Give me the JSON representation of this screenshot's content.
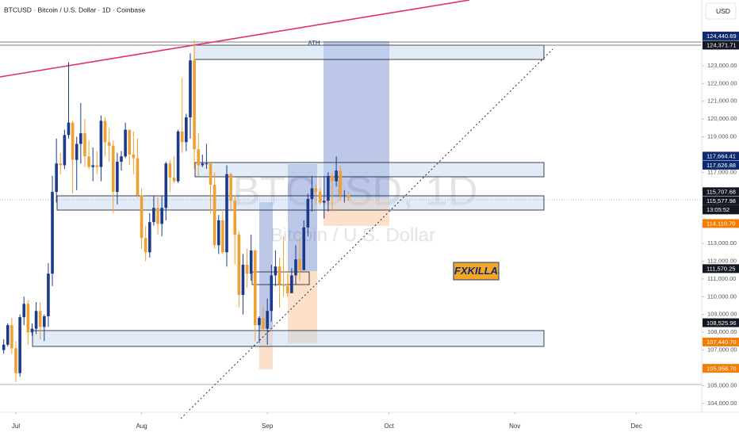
{
  "chart_data": {
    "type": "candlestick",
    "title": "BTCUSD · Bitcoin / U.S. Dollar · 1D · Coinbase",
    "currency": "USD",
    "watermark": "BTCUSD, 1D",
    "watermark_subtitle": "Bitcoin / U.S. Dollar",
    "annotations": [
      "ATH",
      "FXKILLA"
    ],
    "up_color": "#1b3a8c",
    "down_color": "#f0a030",
    "x": [
      -3,
      -2,
      -1,
      0,
      1,
      2,
      3,
      4,
      5,
      6,
      7,
      8,
      9,
      10,
      11,
      12,
      13,
      14,
      15,
      16,
      17,
      18,
      19,
      20,
      21,
      22,
      23,
      24,
      25,
      26,
      27,
      28,
      29,
      30,
      31,
      32,
      33,
      34,
      35,
      36,
      37,
      38,
      39,
      40,
      41,
      42,
      43,
      44,
      45,
      46,
      47,
      48,
      49,
      50,
      51,
      52,
      53,
      54,
      55,
      56,
      57,
      58,
      59,
      60,
      61,
      62,
      63,
      64,
      65,
      66,
      67,
      68,
      69,
      70,
      71,
      72,
      73,
      74,
      75,
      76,
      77,
      78,
      79,
      80,
      81,
      82
    ],
    "open": [
      107000,
      107300,
      108400,
      107100,
      105700,
      108850,
      109600,
      108000,
      108200,
      109200,
      108300,
      108900,
      111300,
      115900,
      117500,
      117400,
      119100,
      119800,
      117700,
      118600,
      119200,
      117900,
      117300,
      117400,
      117300,
      119900,
      118700,
      118500,
      115900,
      117600,
      117900,
      119400,
      118000,
      117800,
      115700,
      113300,
      112500,
      114200,
      115000,
      114100,
      115000,
      117500,
      116700,
      116500,
      119300,
      118700,
      120100,
      123300,
      118300,
      117400,
      117500,
      117500,
      116300,
      112900,
      114300,
      112500,
      116900,
      115400,
      113500,
      110100,
      111800,
      111300,
      112600,
      108400,
      108800,
      108200,
      109200,
      111200,
      111700,
      110700,
      110600,
      110200,
      111200,
      112100,
      111500,
      113900,
      115500,
      116100,
      115900,
      115300,
      115400,
      116800,
      116500,
      117100,
      115700,
      115700
    ],
    "high": [
      107600,
      108500,
      108800,
      107500,
      109000,
      110000,
      109800,
      108500,
      109700,
      109700,
      109000,
      111900,
      116800,
      118900,
      118100,
      119400,
      123200,
      119900,
      119000,
      120900,
      120000,
      118800,
      118400,
      118200,
      120200,
      120100,
      119500,
      118800,
      118100,
      118200,
      119800,
      119400,
      119300,
      118900,
      116100,
      114000,
      114700,
      115700,
      115600,
      115700,
      117600,
      117700,
      117900,
      119400,
      122300,
      120300,
      123700,
      124440.69,
      119200,
      118000,
      118600,
      117600,
      117000,
      114600,
      114800,
      117400,
      117000,
      115700,
      113700,
      112400,
      112700,
      113500,
      112700,
      108900,
      109500,
      109900,
      111800,
      112600,
      112200,
      113400,
      111300,
      111600,
      112900,
      113300,
      114300,
      115800,
      116800,
      116300,
      116100,
      116800,
      117000,
      117000,
      117900,
      117400,
      116000,
      115900
    ],
    "low": [
      106800,
      107200,
      106800,
      105200,
      105500,
      108400,
      107300,
      107800,
      107900,
      107600,
      107500,
      108300,
      110600,
      115300,
      116900,
      117200,
      118900,
      115800,
      116000,
      117500,
      117300,
      117200,
      116500,
      116900,
      116500,
      117900,
      117600,
      114700,
      115200,
      117100,
      117800,
      117400,
      116900,
      115600,
      112700,
      112000,
      112200,
      114000,
      113500,
      113400,
      114300,
      115900,
      116400,
      116400,
      118100,
      118200,
      118900,
      117200,
      116800,
      117300,
      117200,
      114700,
      112700,
      112400,
      112400,
      111700,
      114800,
      111800,
      109400,
      109000,
      110500,
      110900,
      107500,
      107400,
      108100,
      107300,
      108600,
      110600,
      109400,
      110000,
      110000,
      110200,
      110700,
      110900,
      111500,
      113400,
      114800,
      115200,
      115200,
      114400,
      114800,
      114800,
      116200,
      115400,
      115300,
      115400
    ],
    "close": [
      107300,
      108400,
      107100,
      105700,
      108850,
      109600,
      108000,
      108200,
      109200,
      108300,
      108900,
      111300,
      115900,
      117500,
      117400,
      119100,
      119800,
      117700,
      118600,
      119200,
      117900,
      117300,
      117400,
      117300,
      119900,
      118700,
      118500,
      115900,
      117600,
      117900,
      119400,
      118000,
      117800,
      115700,
      113300,
      112500,
      114200,
      115000,
      114100,
      115000,
      117500,
      116700,
      116500,
      119300,
      118700,
      120100,
      123300,
      118300,
      117400,
      117500,
      117500,
      116300,
      112900,
      114300,
      112500,
      116900,
      115400,
      113500,
      110100,
      111800,
      111300,
      112600,
      108400,
      108800,
      108200,
      109200,
      111200,
      111700,
      110700,
      110600,
      110200,
      111200,
      112100,
      111500,
      113900,
      115500,
      116100,
      115900,
      115300,
      115400,
      116800,
      116500,
      117100,
      115700,
      115700,
      115577.98
    ],
    "xlim": [
      -3.91,
      169.1
    ],
    "xticks": [
      {
        "value": 0,
        "label": "Jul"
      },
      {
        "value": 31,
        "label": "Aug"
      },
      {
        "value": 62,
        "label": "Sep"
      },
      {
        "value": 92,
        "label": "Oct"
      },
      {
        "value": 123,
        "label": "Nov"
      },
      {
        "value": 153,
        "label": "Dec"
      }
    ],
    "ylim": [
      103500,
      126700
    ],
    "yticks": [
      {
        "value": 104000,
        "label": "104,000.00"
      },
      {
        "value": 105000,
        "label": "105,000.00"
      },
      {
        "value": 106000,
        "label": "106,000.00"
      },
      {
        "value": 107000,
        "label": "107,000.00"
      },
      {
        "value": 108000,
        "label": "108,000.00"
      },
      {
        "value": 109000,
        "label": "109,000.00"
      },
      {
        "value": 110000,
        "label": "110,000.00"
      },
      {
        "value": 111000,
        "label": "111,000.00"
      },
      {
        "value": 112000,
        "label": "112,000.00"
      },
      {
        "value": 113000,
        "label": "113,000.00"
      },
      {
        "value": 114000,
        "label": "114,000.00"
      },
      {
        "value": 115000,
        "label": "115,000.00"
      },
      {
        "value": 116000,
        "label": "116,000.00"
      },
      {
        "value": 117000,
        "label": "117,000.00"
      },
      {
        "value": 118000,
        "label": "118,000.00"
      },
      {
        "value": 119000,
        "label": "119,000.00"
      },
      {
        "value": 120000,
        "label": "120,000.00"
      },
      {
        "value": 121000,
        "label": "121,000.00"
      },
      {
        "value": 122000,
        "label": "122,000.00"
      },
      {
        "value": 123000,
        "label": "123,000.00"
      },
      {
        "value": 124000,
        "label": "124,000.00"
      }
    ],
    "price_tags": [
      {
        "value": 124440.69,
        "label": "124,440.69",
        "color": "#0d2a6e"
      },
      {
        "value": 124371.71,
        "label": "124,371.71",
        "color": "#131722"
      },
      {
        "value": 117664.41,
        "label": "117,664.41",
        "color": "#0d2a6e"
      },
      {
        "value": 117626.88,
        "label": "117,626.88",
        "color": "#0d2a6e"
      },
      {
        "value": 115707.68,
        "label": "115,707.68",
        "color": "#131722"
      },
      {
        "value": 115577.98,
        "label": "115,577.98",
        "color": "#131722"
      },
      {
        "value": 114110.7,
        "label": "114,110.70",
        "color": "#f57c00"
      },
      {
        "value": 111570.25,
        "label": "111,570.25",
        "color": "#131722"
      },
      {
        "value": 108525.96,
        "label": "108,525.96",
        "color": "#131722"
      },
      {
        "value": 107440.7,
        "label": "107,440.70",
        "color": "#f57c00"
      },
      {
        "value": 105958.7,
        "label": "105,958.70",
        "color": "#f57c00"
      }
    ],
    "countdown": "13:05:52"
  }
}
